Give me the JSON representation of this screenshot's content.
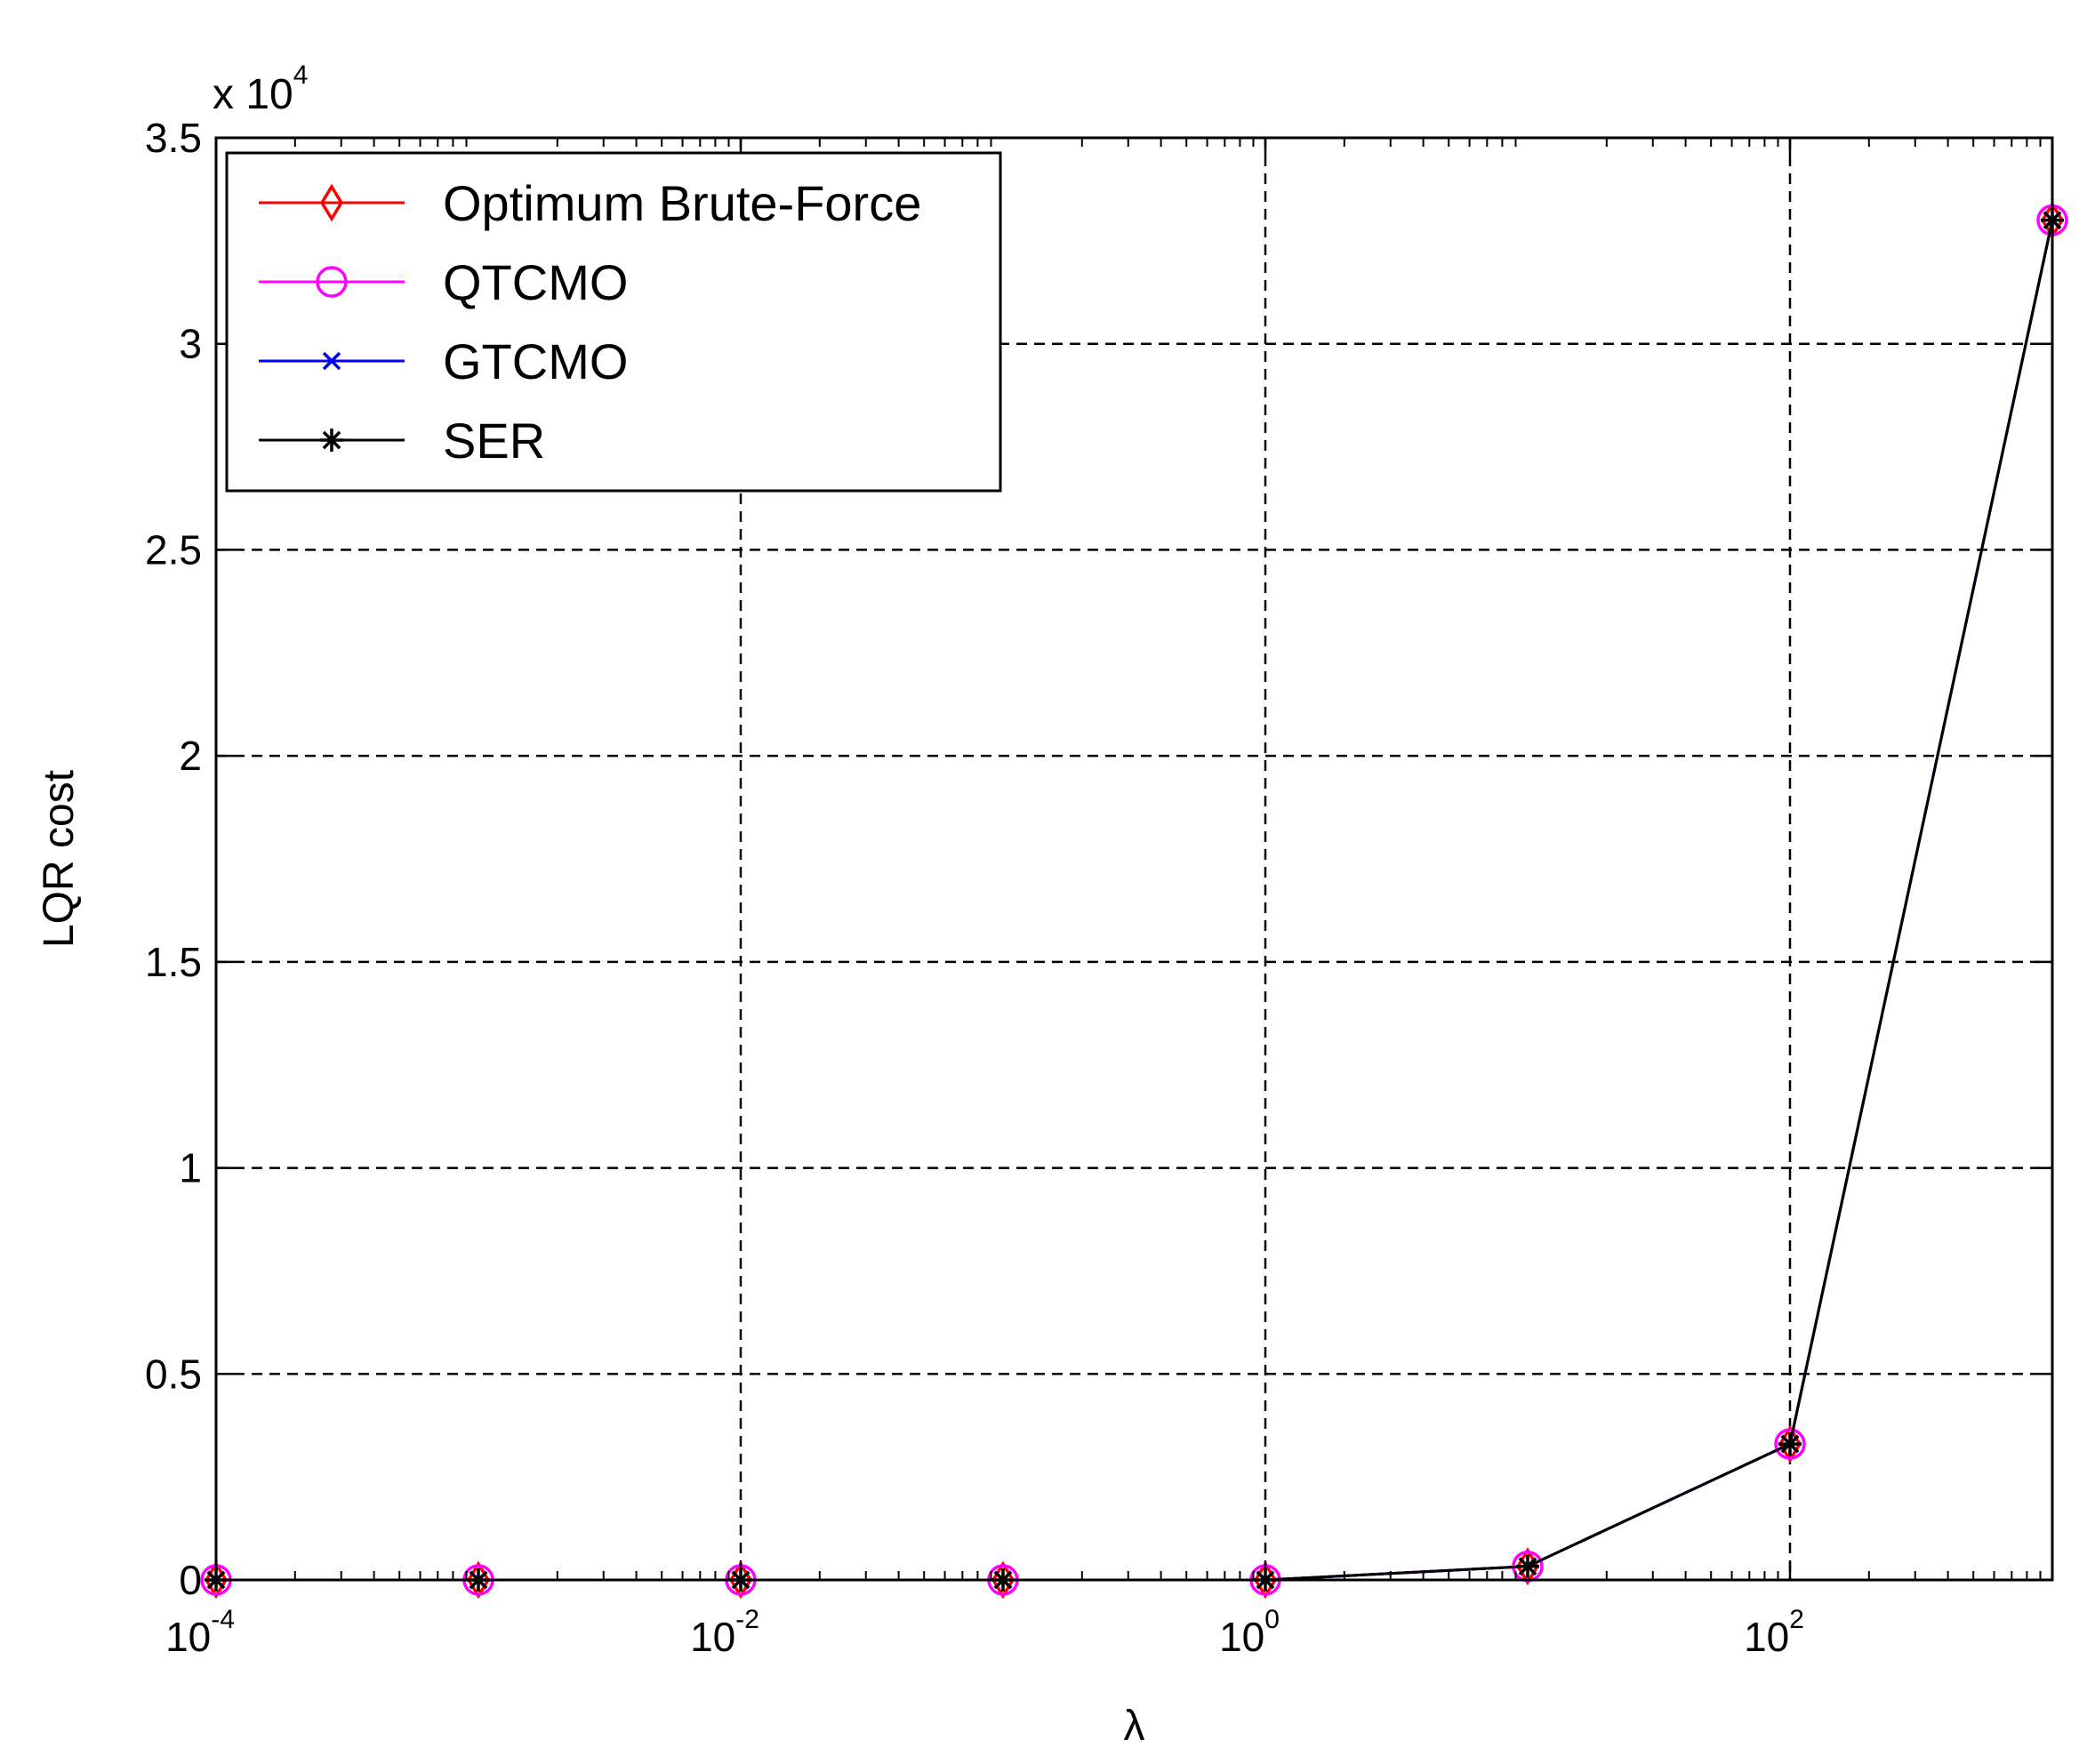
{
  "chart_data": {
    "type": "line",
    "title": "",
    "xlabel": "λ",
    "ylabel": "LQR cost",
    "x_scale": "log",
    "xlim": [
      0.0001,
      1000
    ],
    "ylim": [
      0,
      35000
    ],
    "y_multiplier": {
      "base": "x 10",
      "exponent": "4"
    },
    "x_ticks": [
      {
        "value": 0.0001,
        "base": "10",
        "exponent": "-4"
      },
      {
        "value": 0.01,
        "base": "10",
        "exponent": "-2"
      },
      {
        "value": 1,
        "base": "10",
        "exponent": "0"
      },
      {
        "value": 100,
        "base": "10",
        "exponent": "2"
      }
    ],
    "y_ticks": [
      {
        "value": 0,
        "label": "0"
      },
      {
        "value": 5000,
        "label": "0.5"
      },
      {
        "value": 10000,
        "label": "1"
      },
      {
        "value": 15000,
        "label": "1.5"
      },
      {
        "value": 20000,
        "label": "2"
      },
      {
        "value": 25000,
        "label": "2.5"
      },
      {
        "value": 30000,
        "label": "3"
      },
      {
        "value": 35000,
        "label": "3.5"
      }
    ],
    "grid": true,
    "legend_position": "top-left",
    "x": [
      0.0001,
      0.001,
      0.01,
      0.1,
      1,
      10,
      100,
      1000
    ],
    "series": [
      {
        "name": "Optimum Brute-Force",
        "color": "#ff0000",
        "marker": "diamond",
        "values": [
          0,
          0,
          0,
          0,
          0,
          330,
          3300,
          33000
        ]
      },
      {
        "name": "QTCMO",
        "color": "#ff00ff",
        "marker": "circle",
        "values": [
          0,
          0,
          0,
          0,
          0,
          330,
          3300,
          33000
        ]
      },
      {
        "name": "GTCMO",
        "color": "#0000ff",
        "marker": "x",
        "values": [
          0,
          0,
          0,
          0,
          0,
          330,
          3300,
          33000
        ]
      },
      {
        "name": "SER",
        "color": "#000000",
        "marker": "star",
        "values": [
          0,
          0,
          0,
          0,
          0,
          330,
          3300,
          33000
        ]
      }
    ]
  }
}
